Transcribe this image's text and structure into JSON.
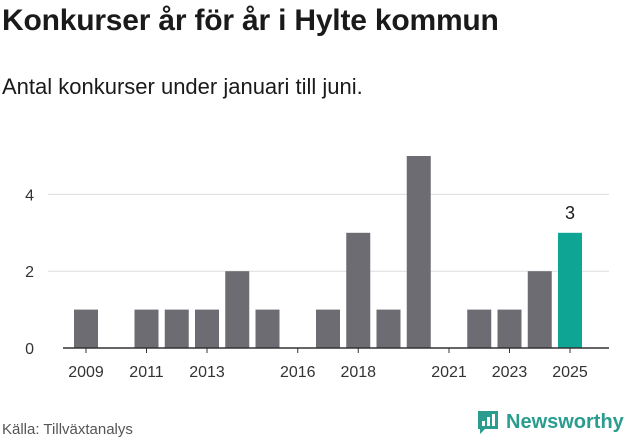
{
  "title": "Konkurser år för år i Hylte kommun",
  "subtitle": "Antal konkurser under januari till juni.",
  "source": "Källa: Tillväxtanalys",
  "brand": "Newsworthy",
  "colors": {
    "bar": "#6d6c72",
    "highlight": "#0fa595",
    "grid": "#dddddd",
    "brand": "#2a9d8f"
  },
  "chart_data": {
    "type": "bar",
    "title": "Konkurser år för år i Hylte kommun",
    "subtitle": "Antal konkurser under januari till juni.",
    "xlabel": "",
    "ylabel": "",
    "categories": [
      "2009",
      "2010",
      "2011",
      "2012",
      "2013",
      "2014",
      "2015",
      "2016",
      "2017",
      "2018",
      "2019",
      "2020",
      "2021",
      "2022",
      "2023",
      "2024",
      "2025"
    ],
    "values": [
      1,
      0,
      1,
      1,
      1,
      2,
      1,
      0,
      1,
      3,
      1,
      5,
      0,
      1,
      1,
      2,
      3
    ],
    "x_tick_labels": [
      "2009",
      "2011",
      "2013",
      "2016",
      "2018",
      "2021",
      "2023",
      "2025"
    ],
    "y_ticks": [
      0,
      2,
      4
    ],
    "ylim": [
      0,
      5.2
    ],
    "highlight_index": 16,
    "highlight_label": "3",
    "grid": true,
    "legend": "none"
  }
}
